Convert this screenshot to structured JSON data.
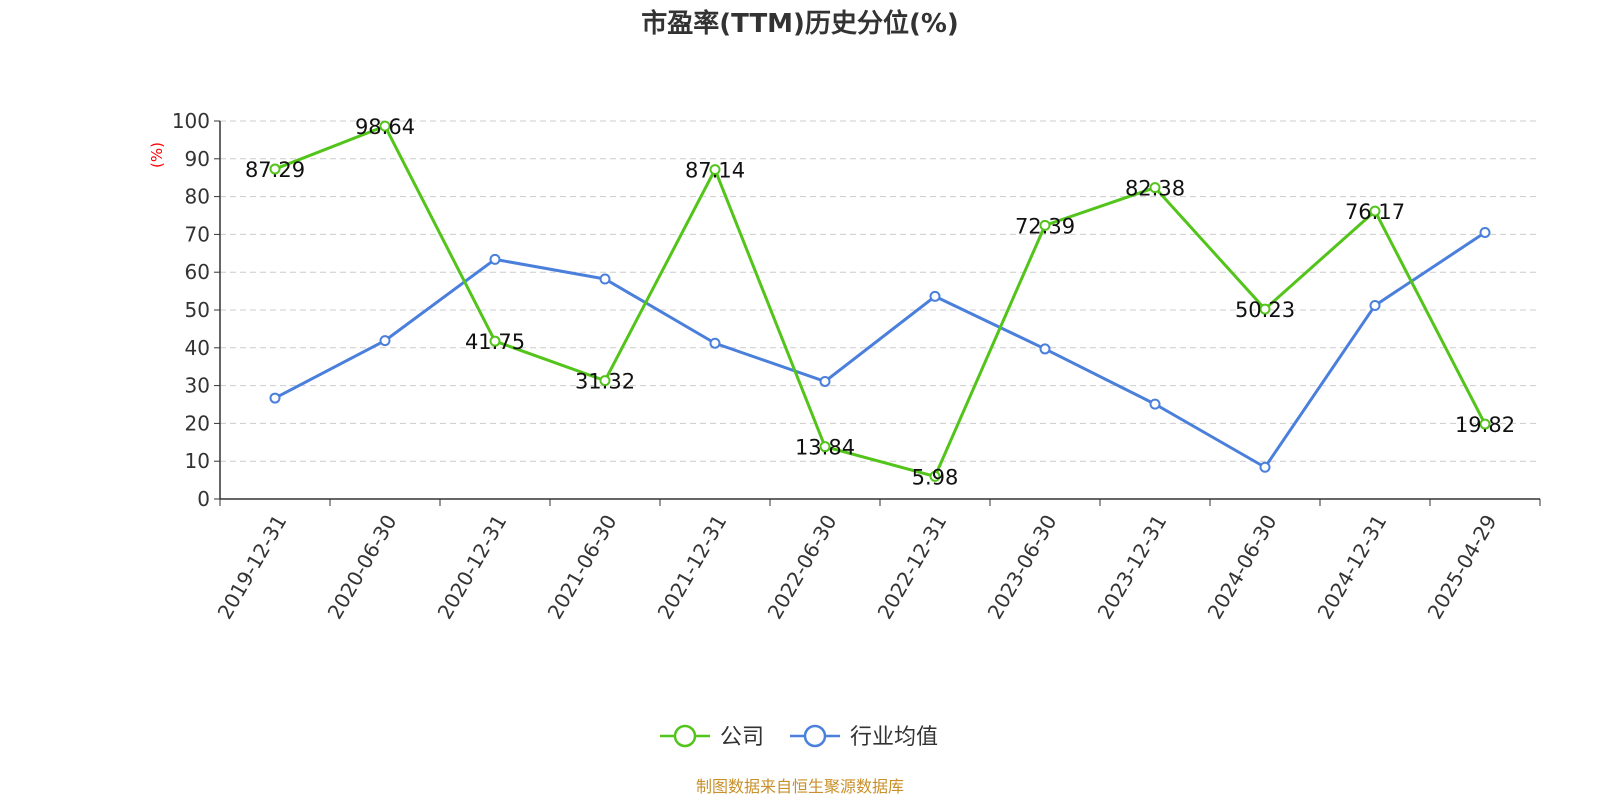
{
  "chart_data": {
    "type": "line",
    "title": "市盈率(TTM)历史分位(%)",
    "ylabel": "(%)",
    "xlabel": "",
    "ylim": [
      0,
      100
    ],
    "yticks": [
      "0",
      "10",
      "20",
      "30",
      "40",
      "50",
      "60",
      "70",
      "80",
      "90",
      "100"
    ],
    "categories": [
      "2019-12-31",
      "2020-06-30",
      "2020-12-31",
      "2021-06-30",
      "2021-12-31",
      "2022-06-30",
      "2022-12-31",
      "2023-06-30",
      "2023-12-31",
      "2024-06-30",
      "2024-12-31",
      "2025-04-29"
    ],
    "series": [
      {
        "name": "公司",
        "color": "#52c41a",
        "values": [
          87.29,
          98.64,
          41.75,
          31.32,
          87.14,
          13.84,
          5.98,
          72.39,
          82.38,
          50.23,
          76.17,
          19.82
        ],
        "labels": [
          "87.29",
          "98.64",
          "41.75",
          "31.32",
          "87.14",
          "13.84",
          "5.98",
          "72.39",
          "82.38",
          "50.23",
          "76.17",
          "19.82"
        ]
      },
      {
        "name": "行业均值",
        "color": "#4a7fdb",
        "values": [
          26.7,
          41.9,
          63.4,
          58.2,
          41.2,
          31.1,
          53.6,
          39.7,
          25.1,
          8.4,
          51.2,
          70.5
        ]
      }
    ],
    "grid": true,
    "legend": "bottom-center"
  },
  "source_text": "制图数据来自恒生聚源数据库"
}
